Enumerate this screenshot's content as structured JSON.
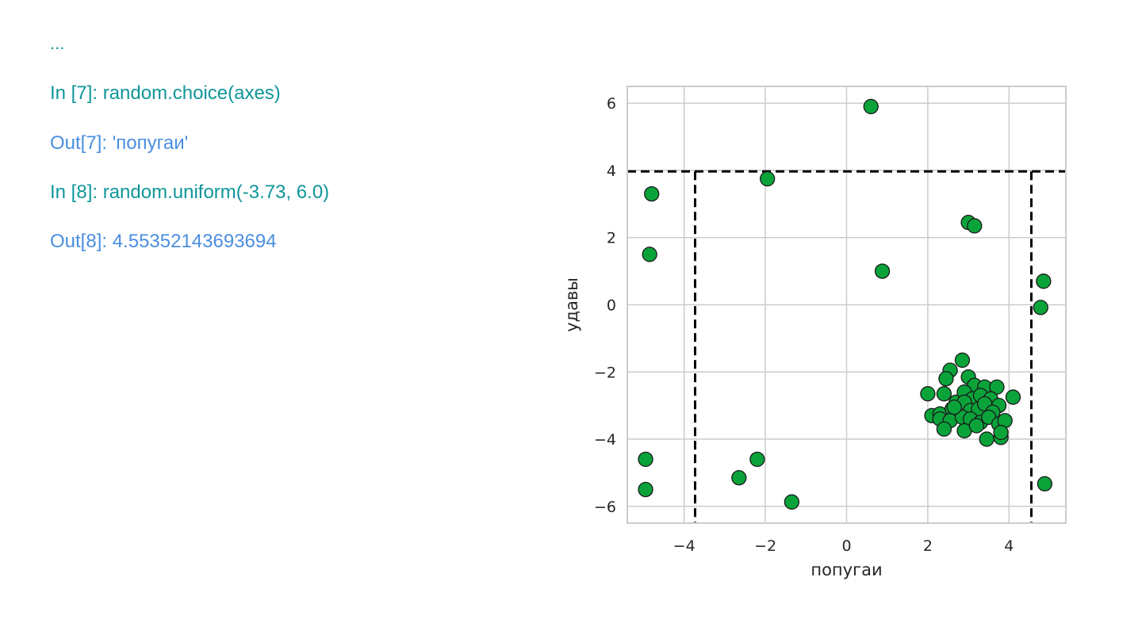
{
  "console": {
    "ellipsis": "...",
    "line1": "In [7]: random.choice(axes)",
    "line2": "Out[7]: 'попугаи'",
    "line3": "In [8]: random.uniform(-3.73, 6.0)",
    "line4": "Out[8]: 4.55352143693694"
  },
  "chart_data": {
    "type": "scatter",
    "title": "",
    "xlabel": "попугаи",
    "ylabel": "удавы",
    "xlim": [
      -5.4,
      5.4
    ],
    "ylim": [
      -6.5,
      6.5
    ],
    "xticks": [
      -4,
      -2,
      0,
      2,
      4
    ],
    "xtick_labels": [
      "−4",
      "−2",
      "0",
      "2",
      "4"
    ],
    "yticks": [
      -6,
      -4,
      -2,
      0,
      2,
      4,
      6
    ],
    "ytick_labels": [
      "−6",
      "−4",
      "−2",
      "0",
      "2",
      "4",
      "6"
    ],
    "grid": true,
    "marker_color": "#0aa33a",
    "marker_edge": "#1a1a1a",
    "threshold_lines": {
      "x_left": -3.73,
      "x_right": 4.55,
      "y_top": 3.97
    },
    "points": [
      [
        0.6,
        5.9
      ],
      [
        -1.95,
        3.75
      ],
      [
        -4.8,
        3.3
      ],
      [
        -4.85,
        1.5
      ],
      [
        3.0,
        2.45
      ],
      [
        3.15,
        2.35
      ],
      [
        0.88,
        1.0
      ],
      [
        4.85,
        0.7
      ],
      [
        4.78,
        -0.08
      ],
      [
        4.88,
        -5.33
      ],
      [
        -4.95,
        -4.6
      ],
      [
        -4.95,
        -5.5
      ],
      [
        -2.2,
        -4.6
      ],
      [
        -2.65,
        -5.15
      ],
      [
        -1.35,
        -5.87
      ],
      [
        2.85,
        -1.65
      ],
      [
        2.55,
        -1.95
      ],
      [
        2.45,
        -2.2
      ],
      [
        3.0,
        -2.15
      ],
      [
        3.15,
        -2.4
      ],
      [
        3.4,
        -2.45
      ],
      [
        3.7,
        -2.45
      ],
      [
        2.0,
        -2.65
      ],
      [
        2.4,
        -2.65
      ],
      [
        2.7,
        -2.9
      ],
      [
        2.9,
        -2.6
      ],
      [
        3.1,
        -2.8
      ],
      [
        3.3,
        -2.7
      ],
      [
        3.55,
        -2.8
      ],
      [
        3.75,
        -3.0
      ],
      [
        4.1,
        -2.75
      ],
      [
        2.1,
        -3.3
      ],
      [
        2.3,
        -3.25
      ],
      [
        2.6,
        -3.1
      ],
      [
        2.9,
        -2.9
      ],
      [
        3.05,
        -3.15
      ],
      [
        3.25,
        -3.1
      ],
      [
        3.4,
        -2.95
      ],
      [
        3.6,
        -3.2
      ],
      [
        2.3,
        -3.4
      ],
      [
        2.55,
        -3.45
      ],
      [
        2.85,
        -3.35
      ],
      [
        3.05,
        -3.4
      ],
      [
        3.3,
        -3.5
      ],
      [
        3.5,
        -3.35
      ],
      [
        3.75,
        -3.55
      ],
      [
        3.9,
        -3.45
      ],
      [
        2.4,
        -3.7
      ],
      [
        2.9,
        -3.75
      ],
      [
        3.2,
        -3.6
      ],
      [
        3.45,
        -4.0
      ],
      [
        3.8,
        -3.95
      ],
      [
        3.8,
        -3.8
      ],
      [
        2.65,
        -3.05
      ]
    ]
  }
}
